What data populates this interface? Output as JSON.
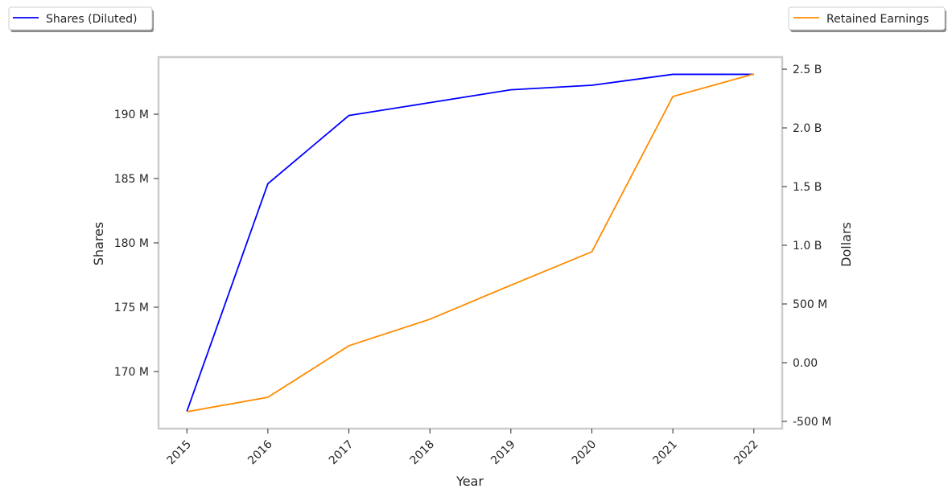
{
  "chart_data": {
    "type": "line",
    "xlabel": "Year",
    "ylabel_left": "Shares",
    "ylabel_right": "Dollars",
    "x": [
      2015,
      2016,
      2017,
      2018,
      2019,
      2020,
      2021,
      2022
    ],
    "x_tick_labels": [
      "2015",
      "2016",
      "2017",
      "2018",
      "2019",
      "2020",
      "2021",
      "2022"
    ],
    "xlim": [
      2014.65,
      2022.35
    ],
    "ylim_left": [
      165.56,
      194.44
    ],
    "ylim_right": [
      -0.562,
      2.603
    ],
    "left_ticks": [
      {
        "v": 170,
        "label": "170 M"
      },
      {
        "v": 175,
        "label": "175 M"
      },
      {
        "v": 180,
        "label": "180 M"
      },
      {
        "v": 185,
        "label": "185 M"
      },
      {
        "v": 190,
        "label": "190 M"
      }
    ],
    "right_ticks": [
      {
        "v": -0.5,
        "label": "-500 M"
      },
      {
        "v": 0,
        "label": "0.00"
      },
      {
        "v": 0.5,
        "label": "500 M"
      },
      {
        "v": 1.0,
        "label": "1.0 B"
      },
      {
        "v": 1.5,
        "label": "1.5 B"
      },
      {
        "v": 2.0,
        "label": "2.0 B"
      },
      {
        "v": 2.5,
        "label": "2.5 B"
      }
    ],
    "grid": false,
    "series": [
      {
        "name": "Shares (Diluted)",
        "axis": "left",
        "unit": "millions",
        "color": "#0000ff",
        "values": [
          166.9,
          184.6,
          189.9,
          190.9,
          191.9,
          192.25,
          193.1,
          193.1
        ],
        "legend": "top-left"
      },
      {
        "name": "Retained Earnings",
        "axis": "right",
        "unit": "billions USD",
        "color": "#ff8c00",
        "values": [
          -0.418,
          -0.295,
          0.144,
          0.37,
          0.66,
          0.945,
          2.267,
          2.459
        ],
        "legend": "top-right"
      }
    ]
  }
}
